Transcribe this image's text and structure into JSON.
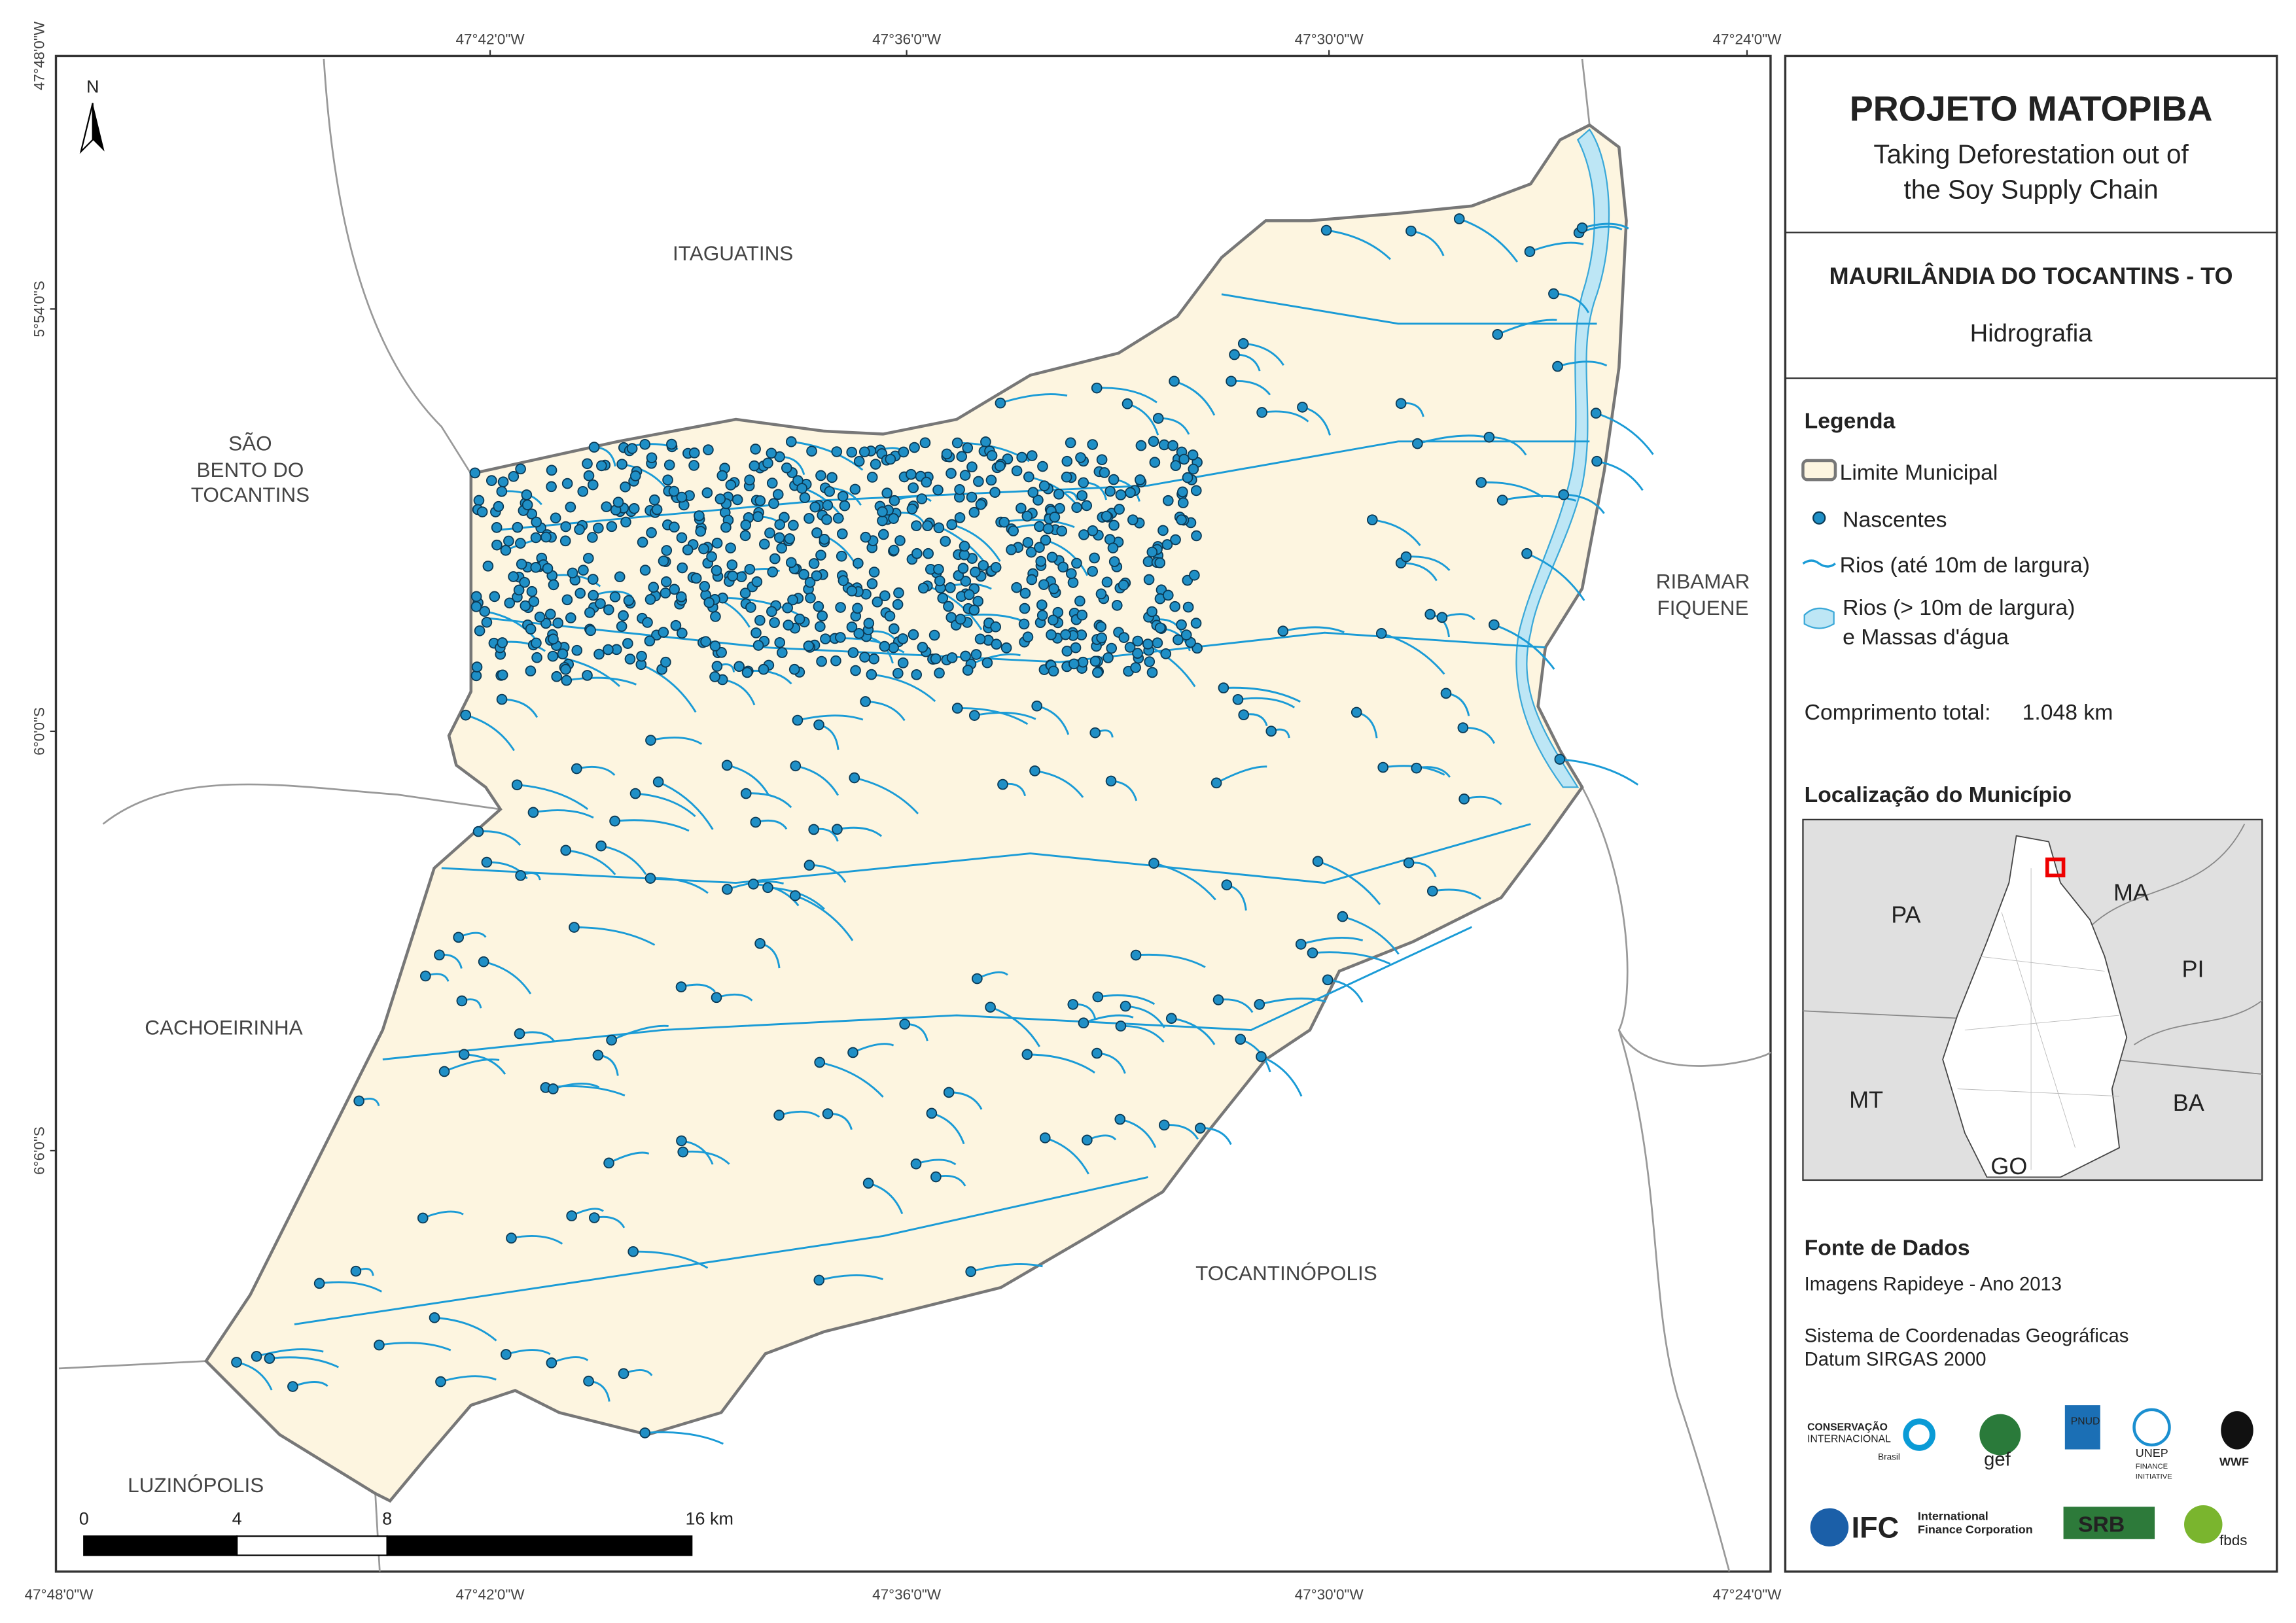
{
  "header": {
    "title": "PROJETO MATOPIBA",
    "subtitle": [
      "Taking Deforestation out of",
      "the Soy Supply Chain"
    ],
    "municipality": "MAURILÂNDIA DO TOCANTINS - TO",
    "theme": "Hidrografia"
  },
  "map": {
    "north": "N",
    "top_coords": [
      "47°42'0\"W",
      "47°36'0\"W",
      "47°30'0\"W",
      "47°24'0\"W"
    ],
    "bottom_coords": [
      "47°48'0\"W",
      "47°42'0\"W",
      "47°36'0\"W",
      "47°30'0\"W",
      "47°24'0\"W"
    ],
    "left_coords": [
      "47°48'0\"W",
      "5°54'0\"S",
      "6°0'0\"S",
      "6°6'0\"S"
    ],
    "neighbors": {
      "itaguatins": [
        "ITAGUATINS"
      ],
      "sao_bento": [
        "SÃO",
        "BENTO DO",
        "TOCANTINS"
      ],
      "ribamar": [
        "RIBAMAR",
        "FIQUENE"
      ],
      "cachoeirinha": [
        "CACHOEIRINHA"
      ],
      "tocantinopolis": [
        "TOCANTINÓPOLIS"
      ],
      "luzinopolis": [
        "LUZINÓPOLIS"
      ]
    },
    "scale": [
      "0",
      "4",
      "8",
      "16 km"
    ]
  },
  "legend": {
    "title": "Legenda",
    "items": [
      "Limite Municipal",
      "Nascentes",
      "Rios (até 10m de largura)",
      "Rios (> 10m de largura)",
      "e Massas d'água"
    ],
    "total_label": "Comprimento total:",
    "total_value": "1.048 km"
  },
  "location": {
    "title": "Localização do Município",
    "states": [
      "PA",
      "MA",
      "PI",
      "MT",
      "BA",
      "GO"
    ]
  },
  "sources": {
    "title": "Fonte de Dados",
    "lines": [
      "Imagens Rapideye - Ano 2013",
      "Sistema de Coordenadas Geográficas",
      "Datum SIRGAS 2000"
    ]
  },
  "logos": [
    "CONSERVAÇÃO",
    "INTERNACIONAL",
    "Brasil",
    "gef",
    "PNUD",
    "UNEP",
    "FINANCE",
    "INITIATIVE",
    "WWF",
    "IFC",
    "International",
    "Finance Corporation",
    "SRB",
    "fbds"
  ]
}
